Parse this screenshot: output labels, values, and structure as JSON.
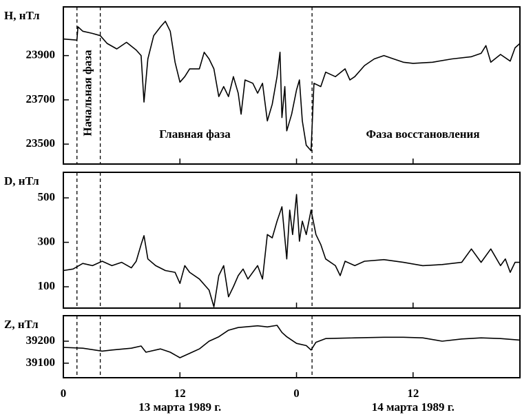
{
  "chart_data": [
    {
      "type": "line",
      "ylabel": "H, нТл",
      "annotations": [
        "Начальная фаза",
        "Главная фаза",
        "Фаза восстановления"
      ],
      "vlines": [
        1.4,
        3.8,
        25.6
      ],
      "xlim": [
        0,
        47
      ],
      "xticks": [
        0,
        12,
        {
          "value": 24,
          "label": "0"
        },
        {
          "value": 36,
          "label": "12"
        }
      ],
      "ylim": [
        23410,
        24120
      ],
      "yticks": [
        23500,
        23700,
        23900
      ],
      "series": [
        {
          "color": "#000000",
          "x": [
            0,
            1.4,
            1.5,
            2,
            3,
            3.8,
            4.5,
            5.5,
            6.5,
            7.5,
            8,
            8.3,
            8.7,
            9.3,
            10,
            10.5,
            11,
            11.5,
            12,
            12.5,
            13,
            14,
            14.5,
            15,
            15.5,
            16,
            16.5,
            17,
            17.5,
            18,
            18.3,
            18.7,
            19.5,
            20,
            20.5,
            21,
            21.5,
            22,
            22.3,
            22.5,
            22.8,
            23,
            23.5,
            24,
            24.3,
            24.6,
            25,
            25.5,
            25.8,
            26.5,
            27,
            28,
            29,
            29.5,
            30,
            31,
            32,
            33,
            34,
            35,
            36,
            38,
            40,
            42,
            43,
            43.5,
            44,
            45,
            46,
            46.5,
            47
          ],
          "values": [
            23975,
            23970,
            24030,
            24010,
            24000,
            23990,
            23955,
            23930,
            23960,
            23925,
            23900,
            23690,
            23885,
            23990,
            24030,
            24055,
            24010,
            23870,
            23780,
            23805,
            23840,
            23840,
            23915,
            23885,
            23840,
            23715,
            23760,
            23715,
            23805,
            23730,
            23635,
            23790,
            23775,
            23730,
            23775,
            23605,
            23680,
            23805,
            23915,
            23620,
            23760,
            23560,
            23635,
            23745,
            23790,
            23605,
            23495,
            23470,
            23775,
            23760,
            23825,
            23805,
            23840,
            23790,
            23805,
            23855,
            23885,
            23900,
            23885,
            23870,
            23865,
            23870,
            23885,
            23895,
            23910,
            23945,
            23870,
            23905,
            23875,
            23935,
            23955
          ]
        }
      ]
    },
    {
      "type": "line",
      "ylabel": "D, нТл",
      "vlines": [
        1.4,
        3.8,
        25.6
      ],
      "xlim": [
        0,
        47
      ],
      "xticks": [
        0,
        12,
        {
          "value": 24,
          "label": "0"
        },
        {
          "value": 36,
          "label": "12"
        }
      ],
      "ylim": [
        4,
        615
      ],
      "yticks": [
        100,
        300,
        500
      ],
      "series": [
        {
          "color": "#000000",
          "x": [
            0,
            1,
            2,
            3,
            4,
            5,
            6,
            7,
            7.5,
            8,
            8.3,
            8.7,
            9.5,
            10.5,
            11.5,
            12,
            12.5,
            13,
            14,
            15,
            15.5,
            16,
            16.5,
            17,
            17.5,
            18,
            18.5,
            19,
            20,
            20.5,
            21,
            21.5,
            22,
            22.5,
            23,
            23.3,
            23.6,
            24,
            24.3,
            24.6,
            25,
            25.5,
            26,
            26.5,
            27,
            28,
            28.5,
            29,
            30,
            31,
            33,
            35,
            37,
            39,
            41,
            42,
            43,
            44,
            45,
            45.5,
            46,
            46.5,
            47
          ],
          "values": [
            173,
            180,
            205,
            195,
            215,
            195,
            210,
            185,
            215,
            290,
            330,
            225,
            195,
            173,
            165,
            115,
            195,
            165,
            135,
            85,
            10,
            150,
            195,
            55,
            100,
            150,
            180,
            135,
            195,
            135,
            335,
            320,
            395,
            460,
            225,
            445,
            335,
            515,
            305,
            395,
            335,
            445,
            335,
            290,
            225,
            195,
            150,
            215,
            195,
            215,
            222,
            210,
            195,
            200,
            210,
            270,
            210,
            270,
            195,
            225,
            165,
            210,
            210
          ]
        }
      ]
    },
    {
      "type": "line",
      "ylabel": "Z, нТл",
      "vlines": [
        1.4,
        3.8,
        25.6
      ],
      "xlim": [
        0,
        47
      ],
      "xticks": [
        0,
        12,
        {
          "value": 24,
          "label": "0"
        },
        {
          "value": 36,
          "label": "12"
        }
      ],
      "ylim": [
        39034,
        39316
      ],
      "yticks": [
        39100,
        39200
      ],
      "x_axis_labels": [
        "13 марта 1989 г.",
        "14 марта 1989 г."
      ],
      "series": [
        {
          "color": "#000000",
          "x": [
            0,
            2,
            4,
            5,
            7,
            8,
            8.5,
            10,
            11,
            12,
            13,
            14,
            15,
            16,
            17,
            18,
            20,
            21,
            22,
            22.5,
            23,
            24,
            25,
            25.5,
            26,
            27,
            30,
            33,
            35,
            37,
            39,
            41,
            43,
            45,
            47
          ],
          "values": [
            39172,
            39168,
            39155,
            39160,
            39168,
            39178,
            39150,
            39165,
            39150,
            39125,
            39145,
            39165,
            39200,
            39220,
            39250,
            39262,
            39270,
            39265,
            39272,
            39240,
            39220,
            39190,
            39180,
            39160,
            39195,
            39212,
            39215,
            39218,
            39218,
            39215,
            39200,
            39210,
            39215,
            39212,
            39205
          ]
        }
      ]
    }
  ]
}
